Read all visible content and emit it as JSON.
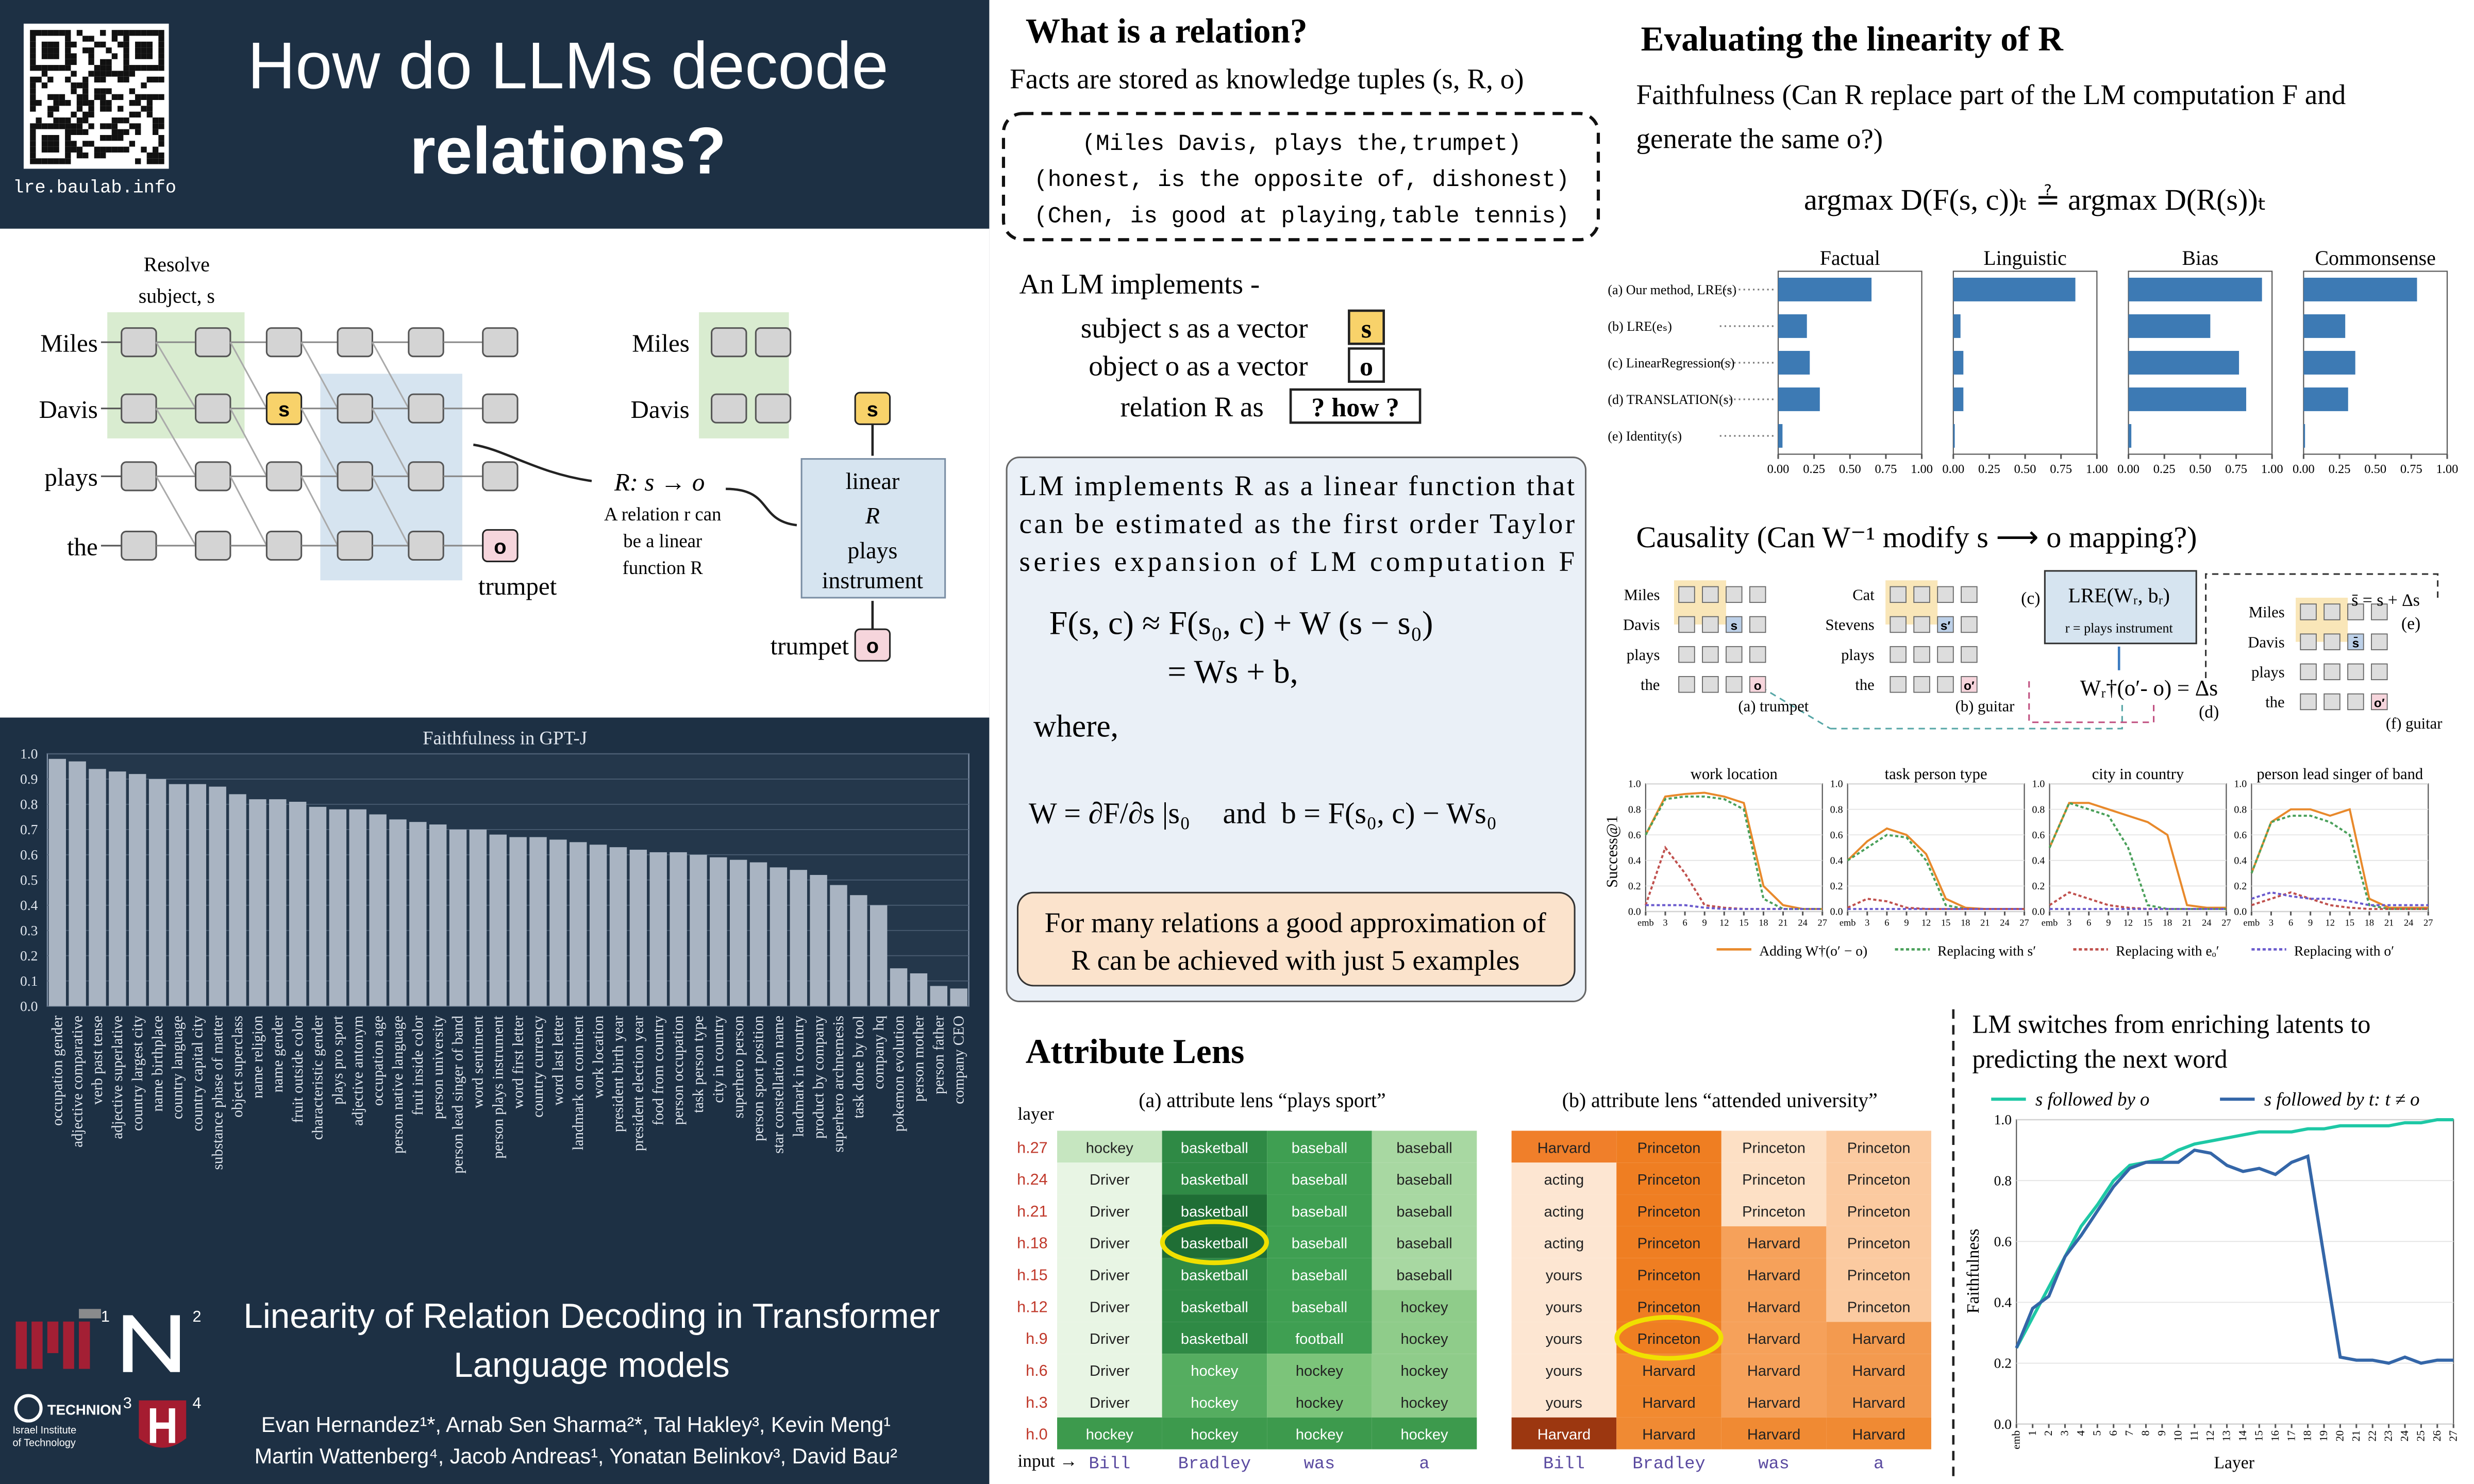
{
  "header": {
    "qr_url": "lre.baulab.info",
    "title": [
      "How do LLMs decode",
      "relations?"
    ]
  },
  "lre_diagram": {
    "resolve": [
      "Resolve",
      "subject, s"
    ],
    "tokens": [
      "Miles",
      "Davis",
      "plays",
      "the"
    ],
    "s": "s",
    "o": "o",
    "output": "trumpet",
    "relation": "R: s → o",
    "note": [
      "A relation r can",
      "be a linear",
      "function R"
    ],
    "box": [
      "linear",
      "R",
      "plays",
      "instrument"
    ]
  },
  "footer": {
    "title": [
      "Linearity of Relation Decoding in Transformer",
      "Language models"
    ],
    "authors": [
      "Evan Hernandez¹*, Arnab Sen Sharma²*, Tal Hakley³, Kevin Meng¹",
      "Martin Wattenberg⁴, Jacob Andreas¹, Yonatan Belinkov³, David Bau²"
    ],
    "affiliation_marks": [
      "1",
      "2",
      "3",
      "4"
    ],
    "technion": [
      "TECHNION",
      "Israel Institute",
      "of Technology"
    ]
  },
  "relation_section": {
    "title": "What is a relation?",
    "intro": "Facts are stored as knowledge tuples (s, R, o)",
    "tuples": [
      "(Miles Davis, plays the,trumpet)",
      "(honest, is the opposite of, dishonest)",
      "(Chen, is good at playing,table tennis)"
    ],
    "implements": "An LM implements -",
    "items": [
      {
        "text": "subject s as a vector",
        "badge": "s"
      },
      {
        "text": "object o as a vector",
        "badge": "o"
      },
      {
        "text": "relation R as",
        "badge": "? how ?"
      }
    ]
  },
  "linear_box": {
    "text": [
      "LM implements R as a linear function that",
      "can be estimated as the first order Taylor",
      "series expansion of LM computation F"
    ],
    "equations": [
      "F(s, c) ≈ F(s₀, c) + W (s − s₀)",
      "= Ws + b,",
      "where,",
      "W = ∂F/∂s |s₀",
      "and",
      "b = F(s₀, c) − Ws₀"
    ],
    "callout": [
      "For many relations a good approximation of",
      "R can be achieved with just 5 examples"
    ]
  },
  "attribute_lens": {
    "title": "Attribute Lens",
    "layer_label": "layer",
    "input_label": "input →",
    "layers": [
      "h.27",
      "h.24",
      "h.21",
      "h.18",
      "h.15",
      "h.12",
      "h.9",
      "h.6",
      "h.3",
      "h.0"
    ],
    "inputs": [
      "Bill",
      "Bradley",
      "was",
      "a"
    ],
    "tables": [
      {
        "caption": "(a) attribute lens “plays sport”",
        "rows": [
          [
            "hockey",
            "basketball",
            "baseball",
            "baseball"
          ],
          [
            "Driver",
            "basketball",
            "baseball",
            "baseball"
          ],
          [
            "Driver",
            "basketball",
            "baseball",
            "baseball"
          ],
          [
            "Driver",
            "basketball",
            "baseball",
            "baseball"
          ],
          [
            "Driver",
            "basketball",
            "baseball",
            "baseball"
          ],
          [
            "Driver",
            "basketball",
            "baseball",
            "hockey"
          ],
          [
            "Driver",
            "basketball",
            "football",
            "hockey"
          ],
          [
            "Driver",
            "hockey",
            "hockey",
            "hockey"
          ],
          [
            "Driver",
            "hockey",
            "hockey",
            "hockey"
          ],
          [
            "hockey",
            "hockey",
            "hockey",
            "hockey"
          ]
        ]
      },
      {
        "caption": "(b) attribute lens “attended university”",
        "rows": [
          [
            "Harvard",
            "Princeton",
            "Princeton",
            "Princeton"
          ],
          [
            "acting",
            "Princeton",
            "Princeton",
            "Princeton"
          ],
          [
            "acting",
            "Princeton",
            "Princeton",
            "Princeton"
          ],
          [
            "acting",
            "Princeton",
            "Harvard",
            "Princeton"
          ],
          [
            "yours",
            "Princeton",
            "Harvard",
            "Princeton"
          ],
          [
            "yours",
            "Princeton",
            "Harvard",
            "Princeton"
          ],
          [
            "yours",
            "Princeton",
            "Harvard",
            "Harvard"
          ],
          [
            "yours",
            "Harvard",
            "Harvard",
            "Harvard"
          ],
          [
            "yours",
            "Harvard",
            "Harvard",
            "Harvard"
          ],
          [
            "Harvard",
            "Harvard",
            "Harvard",
            "Harvard"
          ]
        ]
      }
    ]
  },
  "evaluation": {
    "title": "Evaluating the linearity of R",
    "faithfulness": [
      "Faithfulness (Can R replace part of the LM computation F and",
      "generate the same o?)"
    ],
    "formula": "argmax D(F(s, c))ₜ ≟ argmax D(R(s))ₜ",
    "causality": "Causality  (Can W⁻¹ modify s ⟶ o mapping?)"
  },
  "causality_diagram": {
    "a": {
      "tokens": [
        "Miles",
        "Davis",
        "plays",
        "the"
      ],
      "caption": "(a) trumpet",
      "s": "s",
      "o": "o"
    },
    "b": {
      "tokens": [
        "Cat",
        "Stevens",
        "plays",
        "the"
      ],
      "caption": "(b) guitar",
      "s": "s′",
      "o": "o′"
    },
    "c": {
      "label": "(c)",
      "title": "LRE(Wᵣ, bᵣ)",
      "relation": "r = plays  instrument"
    },
    "d": {
      "label": "(d)",
      "formula": "Wᵣ†(o′- o) = Δs"
    },
    "e": {
      "label": "(e)",
      "formula": "s̄ = s + Δs",
      "tokens": [
        "Miles",
        "Davis",
        "plays",
        "the"
      ],
      "s": "s̄",
      "o": "o′",
      "caption": "(f)  guitar"
    }
  },
  "switch_section": {
    "title": [
      "LM switches from enriching latents to",
      "predicting the next word"
    ]
  },
  "chart_data": [
    {
      "type": "bar",
      "title": "Faithfulness in GPT-J",
      "categories": [
        "occupation gender",
        "adjective comparative",
        "verb past tense",
        "adjective superlative",
        "country largest city",
        "name birthplace",
        "country language",
        "country capital city",
        "substance phase of matter",
        "object superclass",
        "name religion",
        "name gender",
        "fruit outside color",
        "characteristic gender",
        "plays pro sport",
        "adjective antonym",
        "occupation age",
        "person native language",
        "fruit inside color",
        "person university",
        "person lead singer of band",
        "word sentiment",
        "person plays instrument",
        "word first letter",
        "country currency",
        "word last letter",
        "landmark on continent",
        "work location",
        "president birth year",
        "president election year",
        "food from country",
        "person occupation",
        "task person type",
        "city in country",
        "superhero person",
        "person sport position",
        "star constellation name",
        "landmark in country",
        "product by company",
        "superhero archnemesis",
        "task done by tool",
        "company hq",
        "pokemon evolution",
        "person mother",
        "person father",
        "company CEO"
      ],
      "values": [
        0.98,
        0.97,
        0.94,
        0.93,
        0.92,
        0.9,
        0.88,
        0.88,
        0.87,
        0.84,
        0.82,
        0.82,
        0.81,
        0.79,
        0.78,
        0.78,
        0.76,
        0.74,
        0.73,
        0.72,
        0.7,
        0.7,
        0.68,
        0.67,
        0.67,
        0.66,
        0.65,
        0.64,
        0.63,
        0.62,
        0.61,
        0.61,
        0.6,
        0.59,
        0.58,
        0.57,
        0.55,
        0.54,
        0.52,
        0.48,
        0.44,
        0.4,
        0.15,
        0.13,
        0.08,
        0.07
      ],
      "color": "#a9b4c2",
      "ylim": [
        0,
        1
      ],
      "yticks": [
        {
          "value": 0,
          "label": "0.0"
        },
        0.1,
        0.2,
        0.3,
        0.4,
        0.5,
        0.6,
        0.7,
        0.8,
        0.9,
        {
          "value": 1,
          "label": "1.0"
        }
      ],
      "grid": true
    },
    {
      "type": "bar",
      "orientation": "horizontal",
      "categories": [
        "(a) Our method, LRE(s)",
        "(b) LRE(eₛ)",
        "(c) LinearRegression(s)",
        "(d) TRANSLATION(s)",
        "(e) Identity(s)"
      ],
      "series": [
        {
          "name": "Factual",
          "color": "#3d7ab4",
          "values": [
            0.65,
            0.2,
            0.22,
            0.29,
            0.03
          ]
        },
        {
          "name": "Linguistic",
          "color": "#3d7ab4",
          "values": [
            0.85,
            0.05,
            0.07,
            0.07,
            0.01
          ]
        },
        {
          "name": "Bias",
          "color": "#3d7ab4",
          "values": [
            0.93,
            0.57,
            0.77,
            0.82,
            0.02
          ]
        },
        {
          "name": "Commonsense",
          "color": "#3d7ab4",
          "values": [
            0.79,
            0.29,
            0.36,
            0.31,
            0.01
          ]
        }
      ],
      "xlim": [
        0,
        1
      ],
      "xticks": [
        {
          "value": 0,
          "label": "0.00"
        },
        0.25,
        {
          "value": 0.5,
          "label": "0.50"
        },
        0.75,
        {
          "value": 1,
          "label": "1.00"
        }
      ]
    },
    {
      "type": "line",
      "ylabel": "Success@1",
      "x": [
        0,
        3,
        6,
        9,
        12,
        15,
        18,
        21,
        24,
        27
      ],
      "xlim": [
        0,
        27
      ],
      "xticks": [
        {
          "value": 0,
          "label": "emb"
        },
        3,
        6,
        9,
        12,
        15,
        18,
        21,
        24,
        27
      ],
      "ylim": [
        0,
        1
      ],
      "yticks": [
        {
          "value": 0,
          "label": "0.0"
        },
        0.2,
        0.4,
        0.6,
        0.8,
        {
          "value": 1,
          "label": "1.0"
        }
      ],
      "series": [
        {
          "name": "Adding W†(o′ − o)",
          "color": "#e8892b"
        },
        {
          "name": "Replacing with s′",
          "color": "#4aa05a"
        },
        {
          "name": "Replacing with eₒ′",
          "color": "#c0504d"
        },
        {
          "name": "Replacing with o′",
          "color": "#6a5acd"
        }
      ],
      "panels": [
        {
          "title": "work location",
          "series": [
            {
              "values": [
                0.6,
                0.9,
                0.92,
                0.93,
                0.9,
                0.85,
                0.2,
                0.05,
                0.02,
                0.02
              ]
            },
            {
              "values": [
                0.6,
                0.88,
                0.9,
                0.9,
                0.88,
                0.8,
                0.1,
                0.02,
                0.02,
                0.02
              ]
            },
            {
              "values": [
                0.05,
                0.5,
                0.3,
                0.05,
                0.03,
                0.02,
                0.02,
                0.02,
                0.02,
                0.02
              ]
            },
            {
              "values": [
                0.05,
                0.05,
                0.05,
                0.03,
                0.02,
                0.02,
                0.02,
                0.02,
                0.02,
                0.02
              ]
            }
          ]
        },
        {
          "title": "task person type",
          "series": [
            {
              "values": [
                0.4,
                0.55,
                0.65,
                0.6,
                0.45,
                0.1,
                0.03,
                0.02,
                0.02,
                0.02
              ]
            },
            {
              "values": [
                0.4,
                0.5,
                0.6,
                0.58,
                0.4,
                0.05,
                0.02,
                0.02,
                0.02,
                0.02
              ]
            },
            {
              "values": [
                0.03,
                0.1,
                0.08,
                0.03,
                0.02,
                0.02,
                0.02,
                0.02,
                0.02,
                0.02
              ]
            },
            {
              "values": [
                0.02,
                0.02,
                0.02,
                0.02,
                0.02,
                0.02,
                0.02,
                0.02,
                0.02,
                0.02
              ]
            }
          ]
        },
        {
          "title": "city in country",
          "series": [
            {
              "values": [
                0.5,
                0.85,
                0.85,
                0.8,
                0.75,
                0.7,
                0.6,
                0.05,
                0.03,
                0.03
              ]
            },
            {
              "values": [
                0.5,
                0.85,
                0.8,
                0.75,
                0.5,
                0.05,
                0.02,
                0.02,
                0.02,
                0.02
              ]
            },
            {
              "values": [
                0.05,
                0.15,
                0.1,
                0.05,
                0.03,
                0.02,
                0.02,
                0.02,
                0.02,
                0.02
              ]
            },
            {
              "values": [
                0.02,
                0.02,
                0.02,
                0.02,
                0.02,
                0.02,
                0.02,
                0.02,
                0.02,
                0.02
              ]
            }
          ]
        },
        {
          "title": "person lead singer of band",
          "series": [
            {
              "values": [
                0.3,
                0.7,
                0.8,
                0.8,
                0.75,
                0.8,
                0.1,
                0.03,
                0.03,
                0.03
              ]
            },
            {
              "values": [
                0.3,
                0.7,
                0.75,
                0.75,
                0.7,
                0.6,
                0.05,
                0.02,
                0.02,
                0.02
              ]
            },
            {
              "values": [
                0.05,
                0.1,
                0.15,
                0.1,
                0.05,
                0.03,
                0.02,
                0.02,
                0.02,
                0.02
              ]
            },
            {
              "values": [
                0.1,
                0.15,
                0.12,
                0.1,
                0.1,
                0.08,
                0.05,
                0.05,
                0.05,
                0.05
              ]
            }
          ]
        }
      ]
    },
    {
      "type": "line",
      "xlabel": "Layer",
      "ylabel": "Faithfulness",
      "x": [
        0,
        1,
        2,
        3,
        4,
        5,
        6,
        7,
        8,
        9,
        10,
        11,
        12,
        13,
        14,
        15,
        16,
        17,
        18,
        19,
        20,
        21,
        22,
        23,
        24,
        25,
        26,
        27
      ],
      "xlim": [
        0,
        27
      ],
      "xticks": [
        {
          "value": 0,
          "label": "emb"
        },
        1,
        2,
        3,
        4,
        5,
        6,
        7,
        8,
        9,
        10,
        11,
        12,
        13,
        14,
        15,
        16,
        17,
        18,
        19,
        20,
        21,
        22,
        23,
        24,
        25,
        26,
        27
      ],
      "ylim": [
        0,
        1
      ],
      "yticks": [
        {
          "value": 0,
          "label": "0.0"
        },
        0.2,
        0.4,
        0.6,
        0.8,
        {
          "value": 1,
          "label": "1.0"
        }
      ],
      "series": [
        {
          "name": "s followed by o",
          "color": "#1ec8a5",
          "values": [
            0.25,
            0.35,
            0.45,
            0.55,
            0.65,
            0.72,
            0.8,
            0.85,
            0.86,
            0.87,
            0.9,
            0.92,
            0.93,
            0.94,
            0.95,
            0.96,
            0.96,
            0.96,
            0.97,
            0.97,
            0.98,
            0.98,
            0.98,
            0.98,
            0.99,
            0.99,
            1.0,
            1.0
          ]
        },
        {
          "name": "s followed by t: t ≠ o",
          "color": "#3466a8",
          "values": [
            0.25,
            0.38,
            0.42,
            0.55,
            0.62,
            0.7,
            0.78,
            0.84,
            0.86,
            0.86,
            0.86,
            0.9,
            0.89,
            0.85,
            0.83,
            0.84,
            0.82,
            0.86,
            0.88,
            0.55,
            0.22,
            0.21,
            0.21,
            0.2,
            0.22,
            0.2,
            0.21,
            0.21
          ]
        }
      ]
    }
  ]
}
